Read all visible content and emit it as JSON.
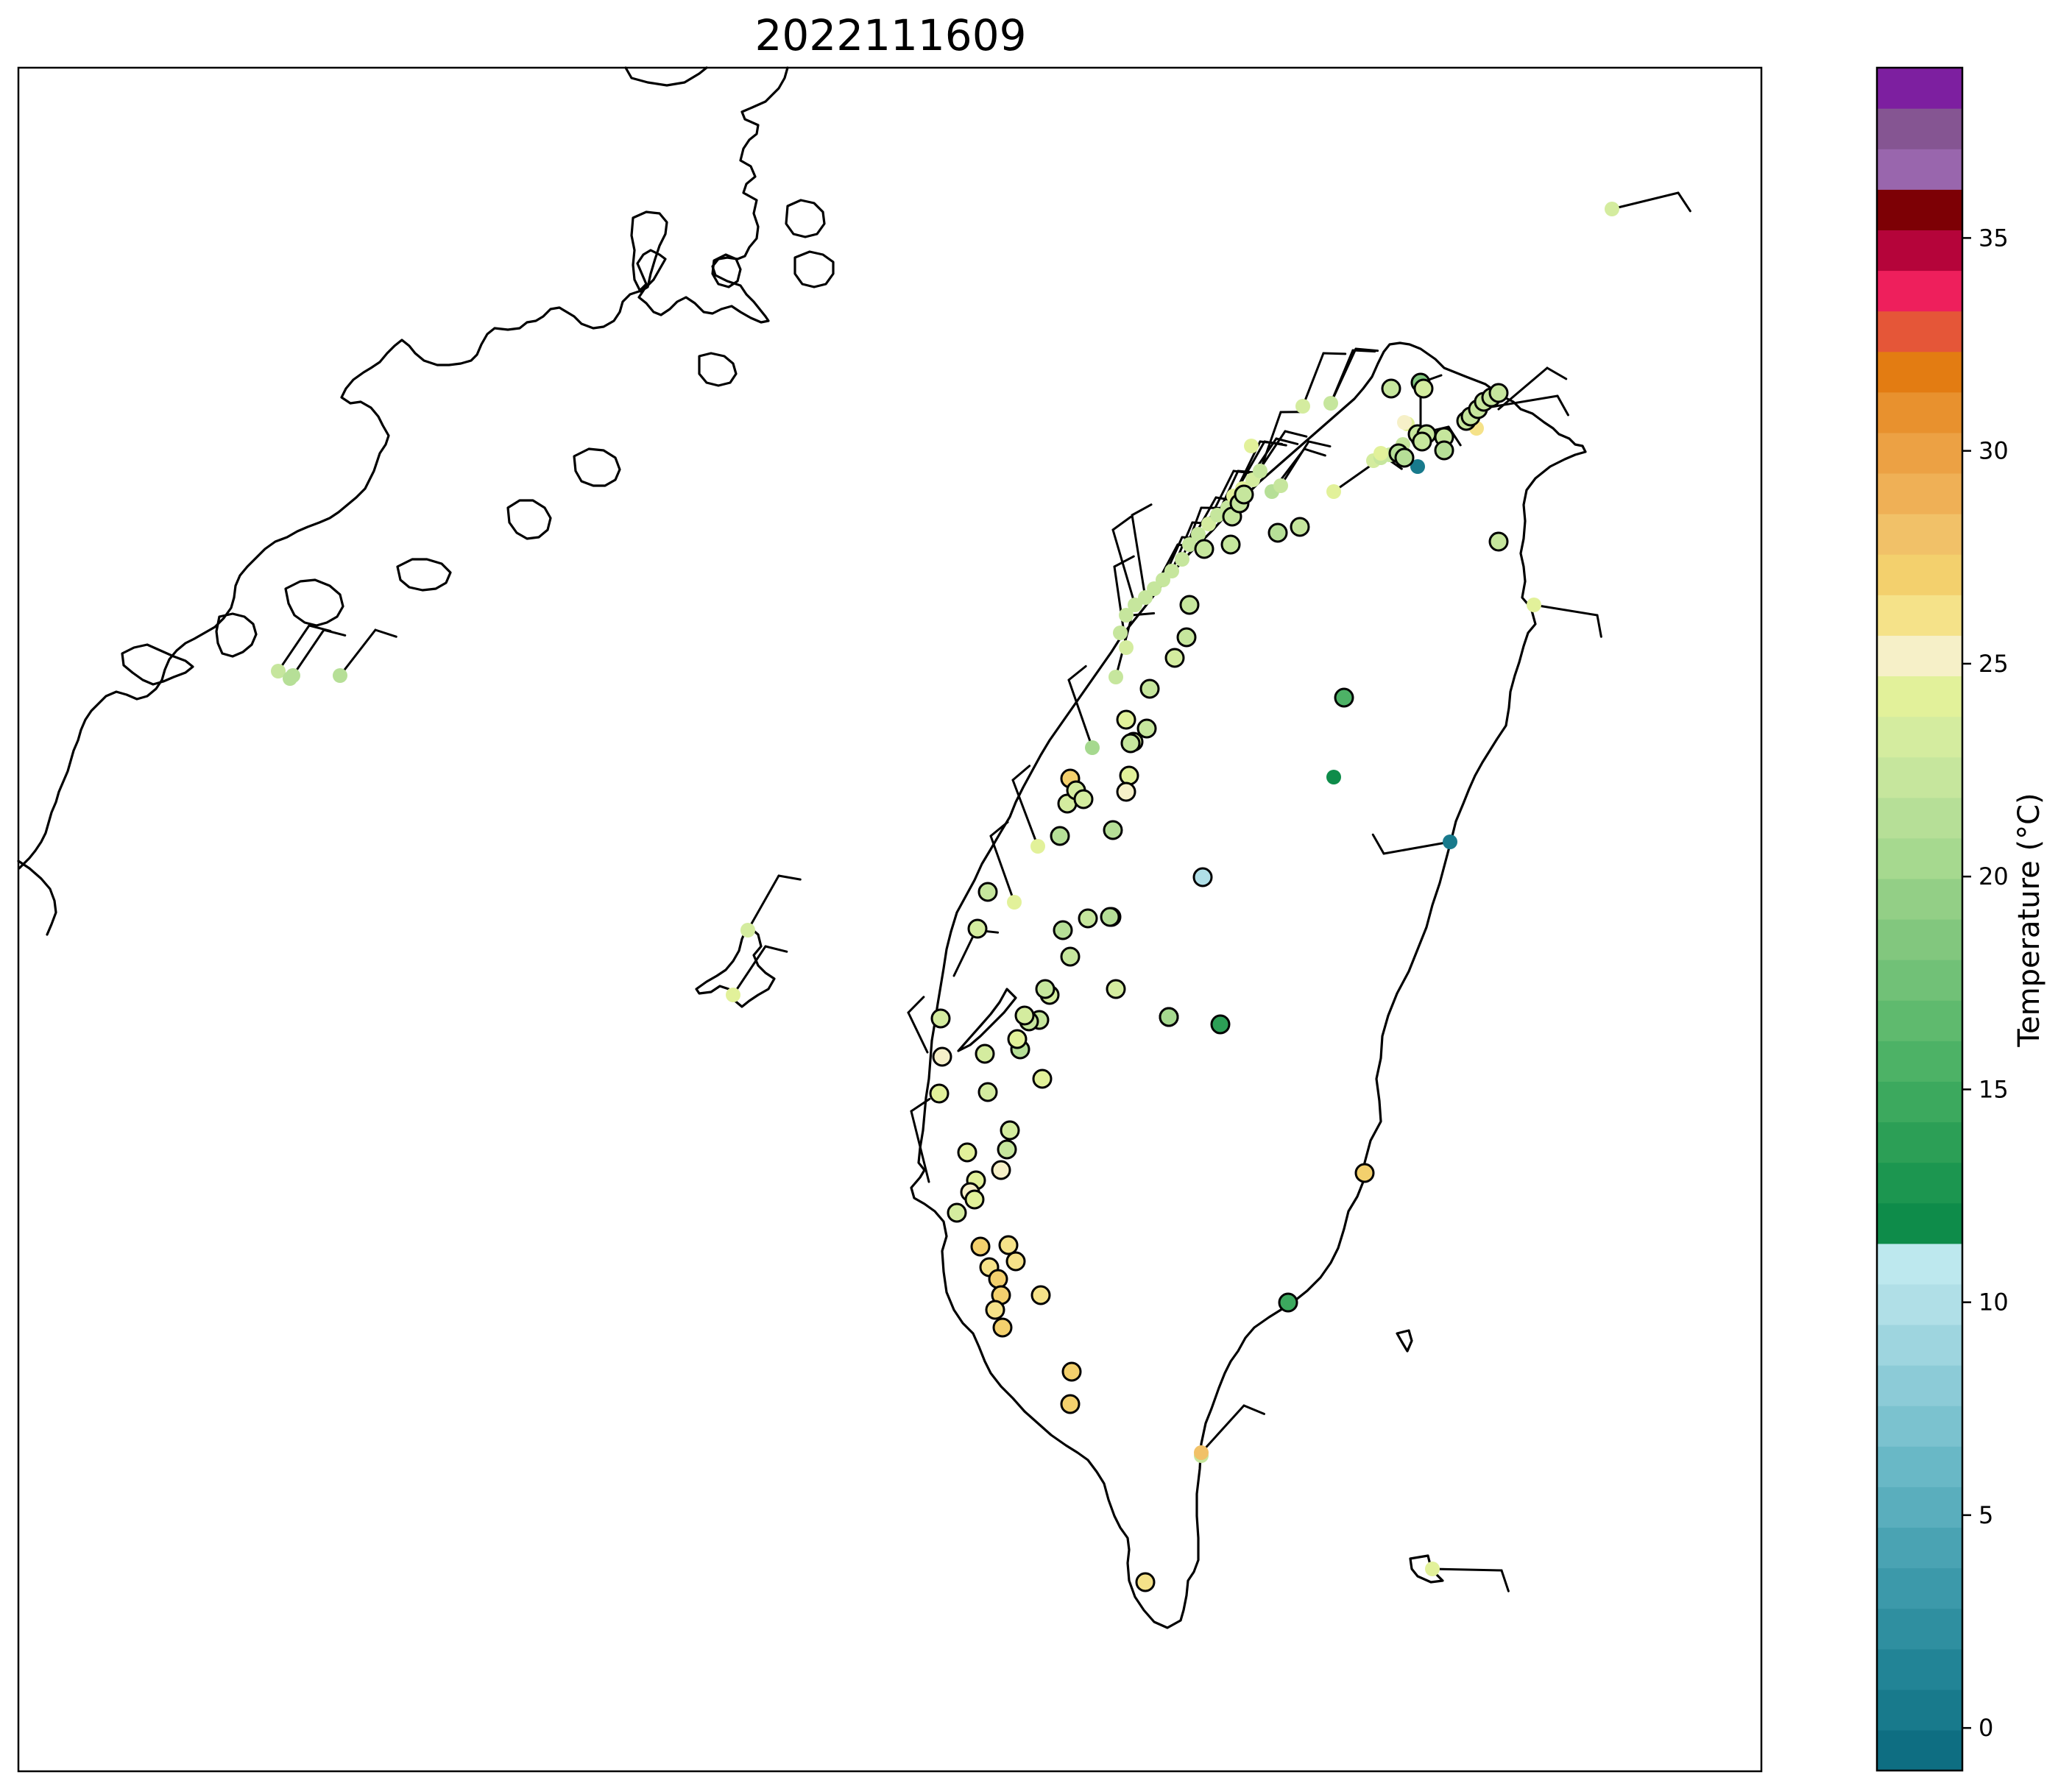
{
  "title": "2022111609",
  "colorbar": {
    "label": "Temperature ($^\\circ$C)",
    "label_display": "Temperature (°C)",
    "ticks": [
      "0",
      "5",
      "10",
      "15",
      "20",
      "25",
      "30",
      "35"
    ],
    "range": [
      -1,
      39
    ],
    "bins": [
      "#0e6e82",
      "#187a8c",
      "#228496",
      "#2f8fa0",
      "#3c99aa",
      "#4aa3b3",
      "#5aaebd",
      "#69b8c6",
      "#7bc2cf",
      "#8ccbd7",
      "#9ed5df",
      "#b0dfe7",
      "#bde8ee",
      "#0e8c4a",
      "#1c9650",
      "#2c9f56",
      "#3ca95e",
      "#4db266",
      "#5fba6e",
      "#71c177",
      "#82c77e",
      "#93cf86",
      "#a6d98f",
      "#b6df97",
      "#c6e69d",
      "#d4ec9f",
      "#e2f19a",
      "#f6f0c8",
      "#f5e289",
      "#f3d06d",
      "#f1c168",
      "#efb056",
      "#eca144",
      "#e8912e",
      "#e37c12",
      "#e55638",
      "#ee1f5c",
      "#b5043a",
      "#7d0005",
      "#9966ad",
      "#855592",
      "#7d1fa0"
    ]
  },
  "chart_data": {
    "type": "scatter",
    "title": "2022111609",
    "color_scale_label": "Temperature ($^\\circ$C)",
    "color_scale_range": [
      -1,
      39
    ],
    "marker_key": [
      "station (no outline)",
      "station (black outline)"
    ],
    "stations": [
      {
        "id": "S01",
        "t": 22.5,
        "outlined": false
      },
      {
        "id": "S02",
        "t": 21.0,
        "outlined": false
      },
      {
        "id": "S03",
        "t": 21.2,
        "outlined": false
      },
      {
        "id": "S04",
        "t": 21.0,
        "outlined": false
      },
      {
        "id": "S05",
        "t": 22.0,
        "outlined": false
      },
      {
        "id": "S06",
        "t": 23.0,
        "outlined": false
      },
      {
        "id": "S07",
        "t": 22.5,
        "outlined": false
      },
      {
        "id": "S08",
        "t": 22.0,
        "outlined": false
      },
      {
        "id": "S09",
        "t": 22.0,
        "outlined": false
      },
      {
        "id": "S10",
        "t": 22.0,
        "outlined": false
      },
      {
        "id": "S11",
        "t": 22.5,
        "outlined": false
      },
      {
        "id": "S12",
        "t": 22.0,
        "outlined": false
      },
      {
        "id": "S13",
        "t": 22.0,
        "outlined": false
      },
      {
        "id": "S14",
        "t": 22.0,
        "outlined": false
      },
      {
        "id": "S15",
        "t": 22.5,
        "outlined": false
      },
      {
        "id": "S16",
        "t": 22.0,
        "outlined": false
      },
      {
        "id": "S17",
        "t": 23.0,
        "outlined": false
      },
      {
        "id": "S18",
        "t": 22.0,
        "outlined": false
      },
      {
        "id": "S19",
        "t": 22.5,
        "outlined": false
      },
      {
        "id": "S20",
        "t": 24.5,
        "outlined": false
      },
      {
        "id": "S21",
        "t": 24.0,
        "outlined": false
      },
      {
        "id": "S22",
        "t": 23.5,
        "outlined": false
      },
      {
        "id": "S23",
        "t": 22.5,
        "outlined": false
      },
      {
        "id": "S24",
        "t": 21.0,
        "outlined": false
      },
      {
        "id": "S25",
        "t": 22.0,
        "outlined": false
      },
      {
        "id": "S26",
        "t": 24.5,
        "outlined": false
      },
      {
        "id": "S27",
        "t": 22.5,
        "outlined": false
      },
      {
        "id": "S28",
        "t": 23.0,
        "outlined": false
      },
      {
        "id": "S29",
        "t": 24.0,
        "outlined": false
      },
      {
        "id": "S30",
        "t": 23.0,
        "outlined": false
      },
      {
        "id": "S31",
        "t": 22.0,
        "outlined": false
      },
      {
        "id": "S32",
        "t": 22.5,
        "outlined": false
      },
      {
        "id": "S33",
        "t": 22.5,
        "outlined": false
      },
      {
        "id": "S34",
        "t": 22.5,
        "outlined": false
      },
      {
        "id": "S35",
        "t": 24.5,
        "outlined": false
      },
      {
        "id": "S36",
        "t": 25.5,
        "outlined": false
      },
      {
        "id": "S37",
        "t": 24.5,
        "outlined": false
      },
      {
        "id": "S38",
        "t": 26.0,
        "outlined": false
      },
      {
        "id": "S39",
        "t": 24.0,
        "outlined": false
      },
      {
        "id": "S40",
        "t": 23.0,
        "outlined": false
      },
      {
        "id": "S41",
        "t": 24.5,
        "outlined": false
      },
      {
        "id": "S42",
        "t": 24.0,
        "outlined": false
      },
      {
        "id": "S43",
        "t": 20.0,
        "outlined": false
      },
      {
        "id": "S44",
        "t": 11.5,
        "outlined": false
      },
      {
        "id": "S45",
        "t": 0.0,
        "outlined": false
      },
      {
        "id": "S46",
        "t": 0.5,
        "outlined": false
      },
      {
        "id": "S47",
        "t": 22.0,
        "outlined": false
      },
      {
        "id": "S48",
        "t": 28.0,
        "outlined": false
      },
      {
        "id": "S49",
        "t": 24.0,
        "outlined": false
      },
      {
        "id": "S50",
        "t": 23.5,
        "outlined": false
      },
      {
        "id": "S51",
        "t": 24.5,
        "outlined": false
      },
      {
        "id": "S52",
        "t": 18.5,
        "outlined": true
      },
      {
        "id": "S53",
        "t": 16.0,
        "outlined": true
      },
      {
        "id": "S54",
        "t": 22.0,
        "outlined": true
      },
      {
        "id": "S55",
        "t": 23.0,
        "outlined": true
      },
      {
        "id": "S56",
        "t": 22.0,
        "outlined": true
      },
      {
        "id": "S57",
        "t": 22.0,
        "outlined": true
      },
      {
        "id": "S58",
        "t": 22.0,
        "outlined": true
      },
      {
        "id": "S59",
        "t": 22.0,
        "outlined": true
      },
      {
        "id": "S60",
        "t": 22.5,
        "outlined": true
      },
      {
        "id": "S61",
        "t": 22.5,
        "outlined": true
      },
      {
        "id": "S62",
        "t": 22.5,
        "outlined": true
      },
      {
        "id": "S63",
        "t": 22.0,
        "outlined": true
      },
      {
        "id": "S64",
        "t": 22.0,
        "outlined": true
      },
      {
        "id": "S65",
        "t": 22.0,
        "outlined": true
      },
      {
        "id": "S66",
        "t": 22.0,
        "outlined": true
      },
      {
        "id": "S67",
        "t": 21.5,
        "outlined": true
      },
      {
        "id": "S68",
        "t": 21.0,
        "outlined": true
      },
      {
        "id": "S69",
        "t": 21.0,
        "outlined": true
      },
      {
        "id": "S70",
        "t": 22.0,
        "outlined": true
      },
      {
        "id": "S71",
        "t": 21.5,
        "outlined": true
      },
      {
        "id": "S72",
        "t": 22.5,
        "outlined": true
      },
      {
        "id": "S73",
        "t": 22.0,
        "outlined": true
      },
      {
        "id": "S74",
        "t": 22.5,
        "outlined": true
      },
      {
        "id": "S75",
        "t": 22.0,
        "outlined": true
      },
      {
        "id": "S76",
        "t": 22.0,
        "outlined": true
      },
      {
        "id": "S77",
        "t": 22.5,
        "outlined": true
      },
      {
        "id": "S78",
        "t": 22.0,
        "outlined": true
      },
      {
        "id": "S79",
        "t": 22.5,
        "outlined": true
      },
      {
        "id": "S80",
        "t": 23.0,
        "outlined": true
      },
      {
        "id": "S81",
        "t": 22.5,
        "outlined": true
      },
      {
        "id": "S82",
        "t": 22.5,
        "outlined": true
      },
      {
        "id": "S83",
        "t": 23.0,
        "outlined": true
      },
      {
        "id": "S84",
        "t": 27.0,
        "outlined": true
      },
      {
        "id": "S85",
        "t": 23.5,
        "outlined": true
      },
      {
        "id": "S86",
        "t": 23.0,
        "outlined": true
      },
      {
        "id": "S87",
        "t": 23.0,
        "outlined": true
      },
      {
        "id": "S88",
        "t": 24.0,
        "outlined": true
      },
      {
        "id": "S89",
        "t": 22.5,
        "outlined": true
      },
      {
        "id": "S90",
        "t": 24.5,
        "outlined": true
      },
      {
        "id": "S91",
        "t": 25.5,
        "outlined": true
      },
      {
        "id": "S92",
        "t": 21.0,
        "outlined": true
      },
      {
        "id": "S93",
        "t": 21.0,
        "outlined": true
      },
      {
        "id": "S94",
        "t": 21.5,
        "outlined": true
      },
      {
        "id": "S95",
        "t": 22.0,
        "outlined": true
      },
      {
        "id": "S96",
        "t": 22.5,
        "outlined": true
      },
      {
        "id": "S97",
        "t": 22.5,
        "outlined": true
      },
      {
        "id": "S98",
        "t": 23.5,
        "outlined": true
      },
      {
        "id": "S99",
        "t": 23.0,
        "outlined": true
      },
      {
        "id": "S100",
        "t": 22.5,
        "outlined": true
      },
      {
        "id": "S101",
        "t": 23.0,
        "outlined": true
      },
      {
        "id": "S102",
        "t": 22.5,
        "outlined": true
      },
      {
        "id": "S103",
        "t": 22.0,
        "outlined": true
      },
      {
        "id": "S104",
        "t": 22.5,
        "outlined": true
      },
      {
        "id": "S105",
        "t": 21.5,
        "outlined": true
      },
      {
        "id": "S106",
        "t": 23.5,
        "outlined": true
      },
      {
        "id": "S107",
        "t": 23.0,
        "outlined": true
      },
      {
        "id": "S108",
        "t": 23.5,
        "outlined": true
      },
      {
        "id": "S109",
        "t": 24.0,
        "outlined": true
      },
      {
        "id": "S110",
        "t": 24.5,
        "outlined": true
      },
      {
        "id": "S111",
        "t": 25.0,
        "outlined": true
      },
      {
        "id": "S112",
        "t": 24.0,
        "outlined": true
      },
      {
        "id": "S113",
        "t": 23.0,
        "outlined": true
      },
      {
        "id": "S114",
        "t": 23.0,
        "outlined": true
      },
      {
        "id": "S115",
        "t": 22.5,
        "outlined": true
      },
      {
        "id": "S116",
        "t": 24.0,
        "outlined": true
      },
      {
        "id": "S117",
        "t": 25.0,
        "outlined": true
      },
      {
        "id": "S118",
        "t": 24.0,
        "outlined": true
      },
      {
        "id": "S119",
        "t": 25.0,
        "outlined": true
      },
      {
        "id": "S120",
        "t": 24.5,
        "outlined": true
      },
      {
        "id": "S121",
        "t": 23.5,
        "outlined": true
      },
      {
        "id": "S122",
        "t": 27.0,
        "outlined": true
      },
      {
        "id": "S123",
        "t": 26.5,
        "outlined": true
      },
      {
        "id": "S124",
        "t": 26.0,
        "outlined": true
      },
      {
        "id": "S125",
        "t": 26.0,
        "outlined": true
      },
      {
        "id": "S126",
        "t": 27.0,
        "outlined": true
      },
      {
        "id": "S127",
        "t": 27.0,
        "outlined": true
      },
      {
        "id": "S128",
        "t": 26.5,
        "outlined": true
      },
      {
        "id": "S129",
        "t": 27.0,
        "outlined": true
      },
      {
        "id": "S130",
        "t": 26.5,
        "outlined": true
      },
      {
        "id": "S131",
        "t": 27.5,
        "outlined": true
      },
      {
        "id": "S132",
        "t": 27.0,
        "outlined": true
      },
      {
        "id": "S133",
        "t": 26.5,
        "outlined": true
      },
      {
        "id": "S134",
        "t": 27.5,
        "outlined": true
      },
      {
        "id": "S135",
        "t": 14.0,
        "outlined": true
      },
      {
        "id": "S136",
        "t": 10.0,
        "outlined": true
      },
      {
        "id": "S137",
        "t": 21.0,
        "outlined": true
      },
      {
        "id": "S138",
        "t": 20.0,
        "outlined": true
      },
      {
        "id": "S139",
        "t": 14.5,
        "outlined": true
      },
      {
        "id": "S140",
        "t": 27.5,
        "outlined": true
      },
      {
        "id": "S141",
        "t": 27.5,
        "outlined": true
      }
    ]
  }
}
